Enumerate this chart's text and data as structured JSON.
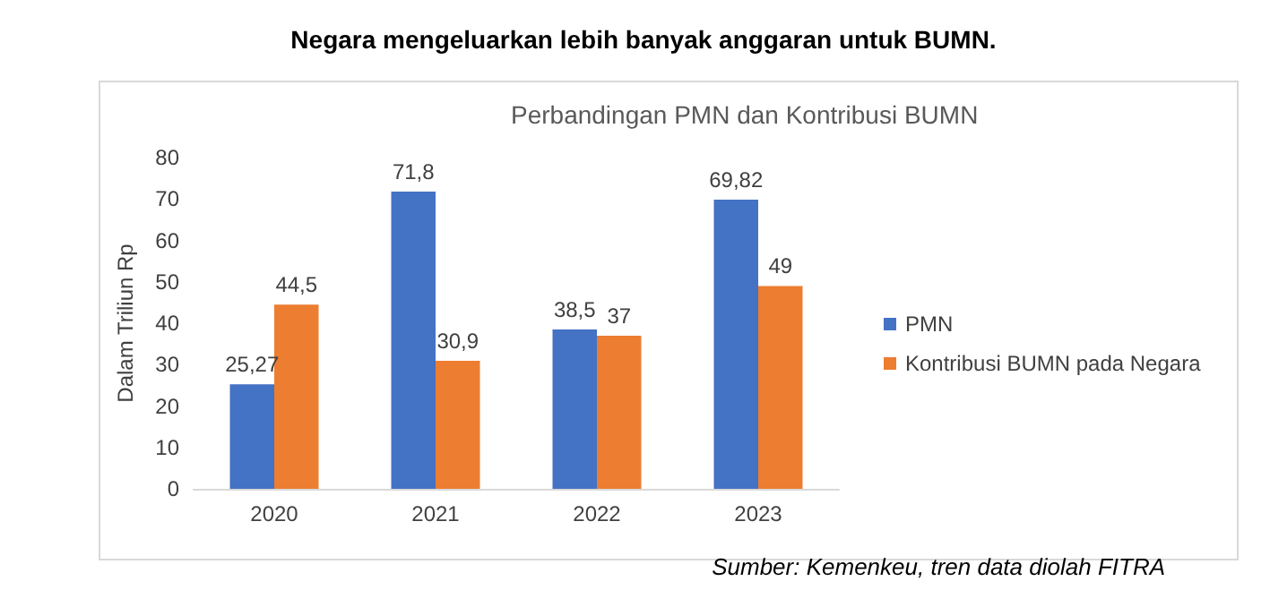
{
  "chart_data": {
    "type": "bar",
    "title": "Negara mengeluarkan lebih banyak anggaran untuk BUMN.",
    "subtitle": "Perbandingan PMN dan Kontribusi BUMN",
    "ylabel": "Dalam Triliun Rp",
    "categories": [
      "2020",
      "2021",
      "2022",
      "2023"
    ],
    "series": [
      {
        "name": "PMN",
        "color": "#4472c4",
        "values": [
          25.27,
          71.8,
          38.5,
          69.82
        ],
        "value_labels": [
          "25,27",
          "71,8",
          "38,5",
          "69,82"
        ]
      },
      {
        "name": "Kontribusi BUMN pada Negara",
        "color": "#ed7d31",
        "values": [
          44.5,
          30.9,
          37,
          49
        ],
        "value_labels": [
          "44,5",
          "30,9",
          "37",
          "49"
        ]
      }
    ],
    "ylim": [
      0,
      80
    ],
    "yticks": [
      0,
      10,
      20,
      30,
      40,
      50,
      60,
      70,
      80
    ],
    "grid": false,
    "legend": "right",
    "annotations": [
      "Sumber: Kemenkeu, tren data diolah FITRA"
    ]
  }
}
